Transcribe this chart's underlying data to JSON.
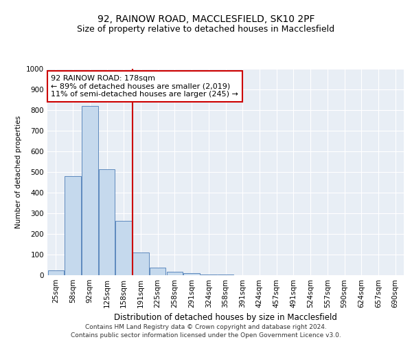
{
  "title1": "92, RAINOW ROAD, MACCLESFIELD, SK10 2PF",
  "title2": "Size of property relative to detached houses in Macclesfield",
  "xlabel": "Distribution of detached houses by size in Macclesfield",
  "ylabel": "Number of detached properties",
  "annotation_line1": "92 RAINOW ROAD: 178sqm",
  "annotation_line2": "← 89% of detached houses are smaller (2,019)",
  "annotation_line3": "11% of semi-detached houses are larger (245) →",
  "categories": [
    "25sqm",
    "58sqm",
    "92sqm",
    "125sqm",
    "158sqm",
    "191sqm",
    "225sqm",
    "258sqm",
    "291sqm",
    "324sqm",
    "358sqm",
    "391sqm",
    "424sqm",
    "457sqm",
    "491sqm",
    "524sqm",
    "557sqm",
    "590sqm",
    "624sqm",
    "657sqm",
    "690sqm"
  ],
  "values": [
    25,
    480,
    820,
    515,
    265,
    110,
    38,
    18,
    10,
    5,
    2,
    1,
    0,
    0,
    0,
    0,
    0,
    0,
    0,
    0,
    0
  ],
  "bar_color": "#c5d9ed",
  "bar_edge_color": "#4a7ab5",
  "vline_color": "#cc0000",
  "vline_x": 4.5,
  "plot_bg_color": "#e8eef5",
  "grid_color": "#ffffff",
  "ylim": [
    0,
    1000
  ],
  "yticks": [
    0,
    100,
    200,
    300,
    400,
    500,
    600,
    700,
    800,
    900,
    1000
  ],
  "footer_line1": "Contains HM Land Registry data © Crown copyright and database right 2024.",
  "footer_line2": "Contains public sector information licensed under the Open Government Licence v3.0.",
  "title1_fontsize": 10,
  "title2_fontsize": 9,
  "annotation_fontsize": 8,
  "axis_fontsize": 7.5,
  "xlabel_fontsize": 8.5,
  "ylabel_fontsize": 7.5,
  "footer_fontsize": 6.5
}
